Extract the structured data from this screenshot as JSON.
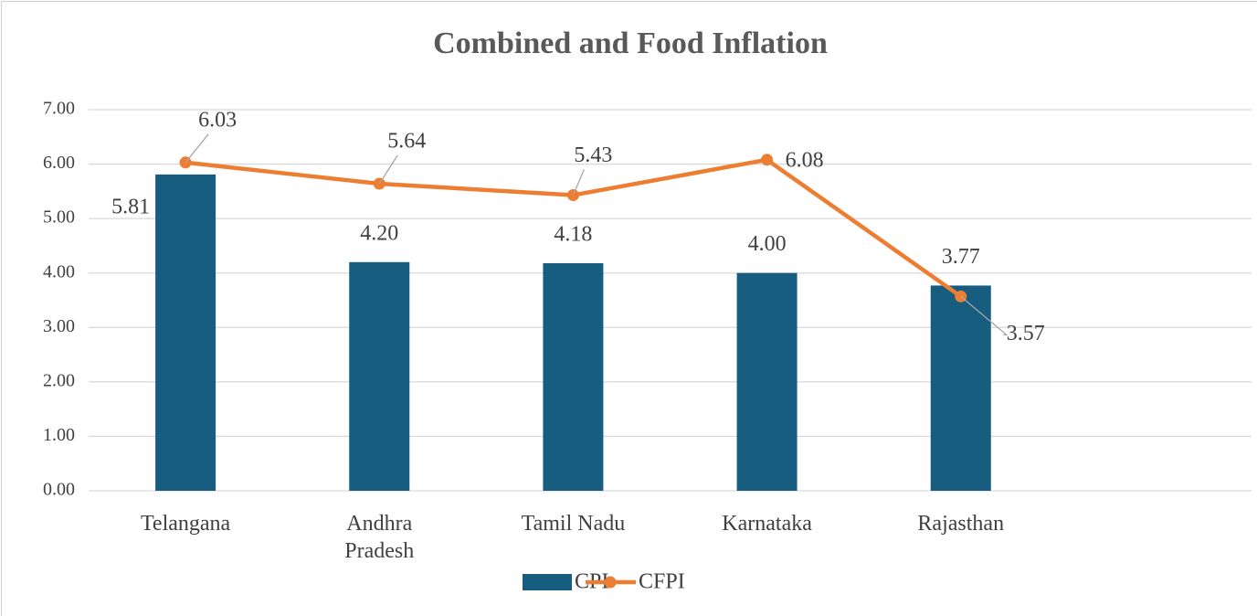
{
  "chart_data": {
    "type": "bar-line",
    "title": "Combined and Food Inflation",
    "categories": [
      "Telangana",
      "Andhra Pradesh",
      "Tamil Nadu",
      "Karnataka",
      "Rajasthan",
      null
    ],
    "series": [
      {
        "name": "CPI",
        "type": "bar",
        "color": "#175d80",
        "values": [
          5.81,
          4.2,
          4.18,
          4.0,
          3.77,
          null
        ],
        "value_labels": [
          "5.81",
          "4.20",
          "4.18",
          "4.00",
          "3.77",
          null
        ]
      },
      {
        "name": "CFPI",
        "type": "line",
        "color": "#ed7d31",
        "values": [
          6.03,
          5.64,
          5.43,
          6.08,
          3.57,
          null
        ],
        "value_labels": [
          "6.03",
          "5.64",
          "5.43",
          "6.08",
          "3.57",
          null
        ]
      }
    ],
    "ylim": [
      0,
      7
    ],
    "yticks": [
      {
        "value": 0,
        "label": "0.00"
      },
      {
        "value": 1,
        "label": "1.00"
      },
      {
        "value": 2,
        "label": "2.00"
      },
      {
        "value": 3,
        "label": "3.00"
      },
      {
        "value": 4,
        "label": "4.00"
      },
      {
        "value": 5,
        "label": "5.00"
      },
      {
        "value": 6,
        "label": "6.00"
      },
      {
        "value": 7,
        "label": "7.00"
      }
    ],
    "grid": true,
    "legend": "bottom"
  }
}
